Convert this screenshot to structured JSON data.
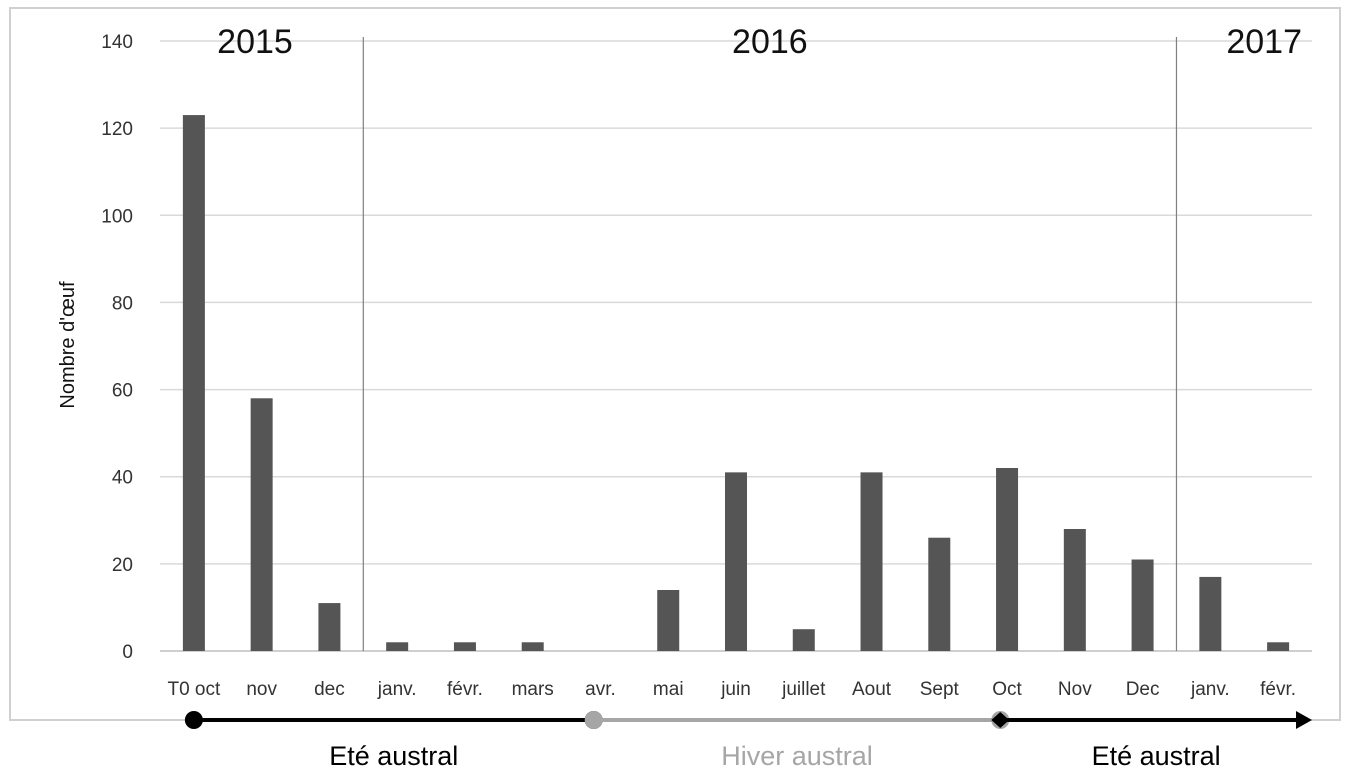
{
  "chart_data": {
    "type": "bar",
    "title": "",
    "xlabel": "",
    "ylabel": "Nombre d'œuf",
    "ylim": [
      0,
      140
    ],
    "yticks": [
      0,
      20,
      40,
      60,
      80,
      100,
      120,
      140
    ],
    "grid": true,
    "categories": [
      "T0 oct",
      "nov",
      "dec",
      "janv.",
      "févr.",
      "mars",
      "avr.",
      "mai",
      "juin",
      "juillet",
      "Aout",
      "Sept",
      "Oct",
      "Nov",
      "Dec",
      "janv.",
      "févr."
    ],
    "values": [
      123,
      58,
      11,
      2,
      2,
      2,
      0,
      14,
      41,
      5,
      41,
      26,
      42,
      28,
      21,
      17,
      2
    ],
    "colors": {
      "bar": "#555555",
      "grid": "#d9d9d9",
      "summer": "#000000",
      "winter": "#a6a6a6"
    },
    "year_labels": [
      {
        "text": "2015",
        "from": 0,
        "to": 2
      },
      {
        "text": "2016",
        "from": 3,
        "to": 14
      },
      {
        "text": "2017",
        "from": 15,
        "to": 16
      }
    ],
    "year_dividers_after": [
      2,
      14
    ],
    "seasons": [
      {
        "text": "Eté austral",
        "color": "#000000",
        "from": 0.5,
        "to": 6.4,
        "start": "dot",
        "end": "dot"
      },
      {
        "text": "Hiver austral",
        "color": "#a6a6a6",
        "from": 6.4,
        "to": 12.4,
        "start": "dot",
        "end": "dot"
      },
      {
        "text": "Eté austral",
        "color": "#000000",
        "from": 12.4,
        "to": 17.0,
        "start": "diamond",
        "end": "arrow"
      }
    ]
  }
}
